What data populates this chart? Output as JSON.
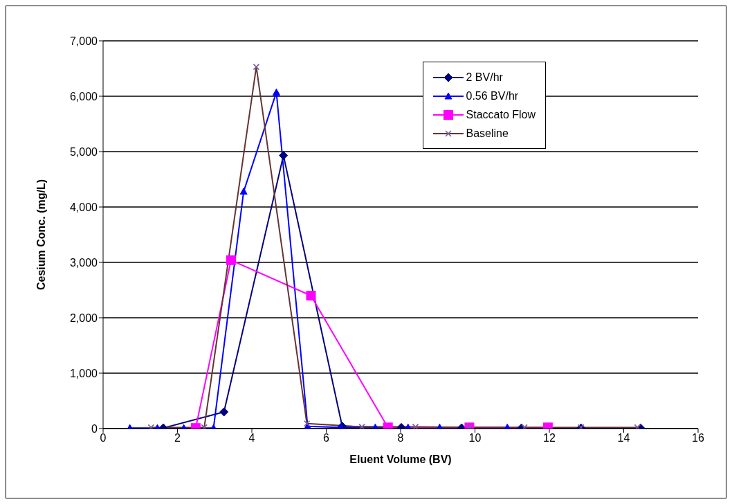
{
  "chart_data": {
    "type": "line",
    "xlabel": "Eluent Volume (BV)",
    "ylabel": "Cesium Conc.  (mg/L)",
    "xlim": [
      0,
      16
    ],
    "xticks": [
      0,
      2,
      4,
      6,
      8,
      10,
      12,
      14,
      16
    ],
    "ylim": [
      0,
      7000
    ],
    "yticks": [
      0,
      {
        "value": 1000,
        "label": "1,000"
      },
      {
        "value": 2000,
        "label": "2,000"
      },
      {
        "value": 3000,
        "label": "3,000"
      },
      {
        "value": 4000,
        "label": "4,000"
      },
      {
        "value": 5000,
        "label": "5,000"
      },
      {
        "value": 6000,
        "label": "6,000"
      },
      {
        "value": 7000,
        "label": "7,000"
      }
    ],
    "grid": "y",
    "legend": "top right",
    "line_style": "solid",
    "series": [
      {
        "name": "2 BV/hr",
        "color": "#000080",
        "marker": "diamond",
        "x": [
          1.62,
          3.25,
          4.85,
          6.43,
          8.02,
          9.64,
          11.25,
          12.85,
          14.45
        ],
        "values": [
          10,
          300,
          4930,
          40,
          20,
          10,
          10,
          10,
          10
        ]
      },
      {
        "name": "0.56 BV/hr",
        "color": "#0000ff",
        "marker": "triangle",
        "x": [
          0.72,
          1.46,
          2.17,
          2.97,
          3.78,
          4.66,
          5.5,
          6.4,
          7.32,
          8.2,
          9.05,
          10.87
        ],
        "values": [
          10,
          10,
          10,
          10,
          4280,
          6070,
          40,
          20,
          20,
          20,
          20,
          20
        ]
      },
      {
        "name": "Staccato Flow",
        "color": "#ff00ff",
        "marker": "square",
        "x": [
          2.49,
          3.44,
          5.59,
          7.66,
          9.85,
          11.96
        ],
        "values": [
          10,
          3040,
          2400,
          20,
          20,
          20
        ]
      },
      {
        "name": "Baseline",
        "color": "#663333",
        "marker": "cross",
        "x": [
          1.29,
          2.72,
          4.12,
          5.48,
          6.96,
          8.4,
          9.85,
          11.33,
          12.85,
          14.37
        ],
        "values": [
          20,
          20,
          6530,
          90,
          30,
          30,
          20,
          20,
          20,
          20
        ]
      }
    ]
  }
}
